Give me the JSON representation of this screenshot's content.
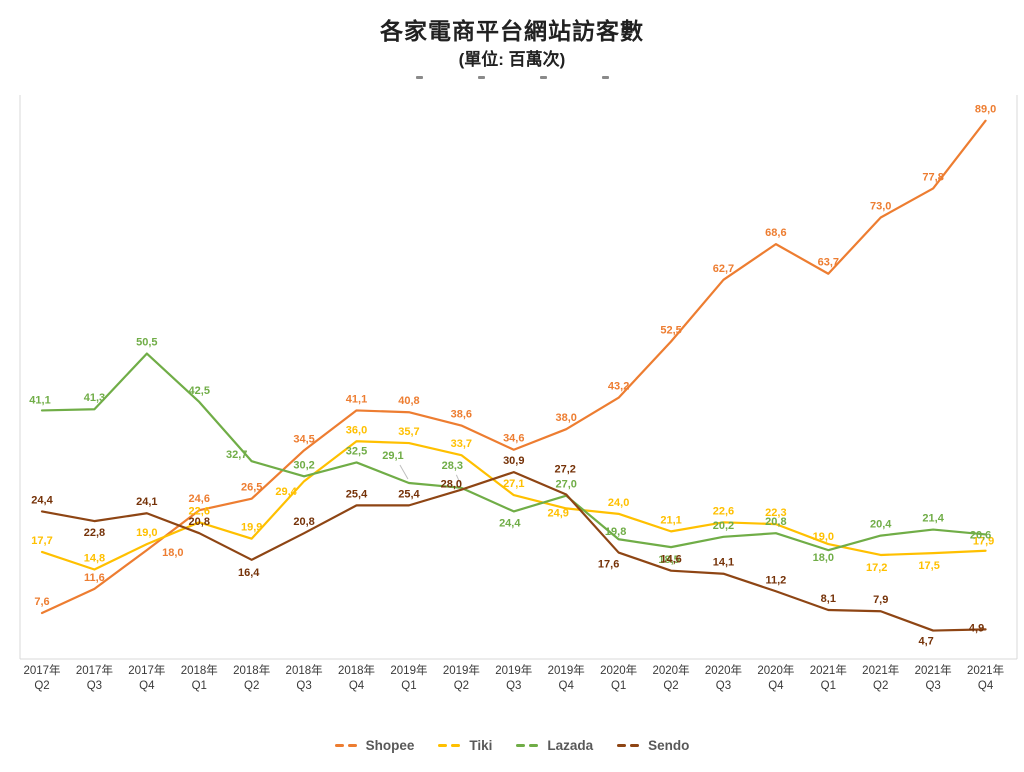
{
  "title": "各家電商平台網站訪客數",
  "subtitle": "(單位: 百萬次)",
  "chart_data": {
    "type": "line",
    "title": "各家電商平台網站訪客數",
    "subtitle": "(單位: 百萬次)",
    "unit": "百萬次",
    "grid": false,
    "legend_position": "bottom",
    "ylim": [
      0,
      95
    ],
    "decimal_separator": ",",
    "x_categories": [
      {
        "year": "2017年",
        "quarter": "Q2"
      },
      {
        "year": "2017年",
        "quarter": "Q3"
      },
      {
        "year": "2017年",
        "quarter": "Q4"
      },
      {
        "year": "2018年",
        "quarter": "Q1"
      },
      {
        "year": "2018年",
        "quarter": "Q2"
      },
      {
        "year": "2018年",
        "quarter": "Q3"
      },
      {
        "year": "2018年",
        "quarter": "Q4"
      },
      {
        "year": "2019年",
        "quarter": "Q1"
      },
      {
        "year": "2019年",
        "quarter": "Q2"
      },
      {
        "year": "2019年",
        "quarter": "Q3"
      },
      {
        "year": "2019年",
        "quarter": "Q4"
      },
      {
        "year": "2020年",
        "quarter": "Q1"
      },
      {
        "year": "2020年",
        "quarter": "Q2"
      },
      {
        "year": "2020年",
        "quarter": "Q3"
      },
      {
        "year": "2020年",
        "quarter": "Q4"
      },
      {
        "year": "2021年",
        "quarter": "Q1"
      },
      {
        "year": "2021年",
        "quarter": "Q2"
      },
      {
        "year": "2021年",
        "quarter": "Q3"
      },
      {
        "year": "2021年",
        "quarter": "Q4"
      }
    ],
    "series": [
      {
        "name": "Shopee",
        "color": "#ED7D31",
        "label_color": "#ED7D31",
        "values": [
          7.6,
          11.6,
          18.0,
          24.6,
          26.5,
          34.5,
          41.1,
          40.8,
          38.6,
          34.6,
          38.0,
          43.2,
          52.5,
          62.7,
          68.6,
          63.7,
          73.0,
          77.8,
          89.0
        ]
      },
      {
        "name": "Tiki",
        "color": "#FFC000",
        "label_color": "#FFC000",
        "values": [
          17.7,
          14.8,
          19.0,
          22.6,
          19.9,
          29.4,
          36.0,
          35.7,
          33.7,
          27.1,
          24.9,
          24.0,
          21.1,
          22.6,
          22.3,
          19.0,
          17.2,
          17.5,
          17.9
        ]
      },
      {
        "name": "Lazada",
        "color": "#70AD47",
        "label_color": "#70AD47",
        "values": [
          41.1,
          41.3,
          50.5,
          42.5,
          32.7,
          30.2,
          32.5,
          29.1,
          28.3,
          24.4,
          27.0,
          19.8,
          18.5,
          20.2,
          20.8,
          18.0,
          20.4,
          21.4,
          20.6
        ]
      },
      {
        "name": "Sendo",
        "color": "#8E4514",
        "label_color": "#753208",
        "values": [
          24.4,
          22.8,
          24.1,
          20.8,
          16.4,
          20.8,
          25.4,
          25.4,
          28.0,
          30.9,
          27.2,
          17.6,
          14.6,
          14.1,
          11.2,
          8.1,
          7.9,
          4.7,
          4.9
        ]
      }
    ],
    "colors": {
      "axis_line": "#D9D9D9",
      "axis_text": "#3A3A3A",
      "leader_line": "#BFBFBF",
      "legend_text": "#595959"
    }
  }
}
